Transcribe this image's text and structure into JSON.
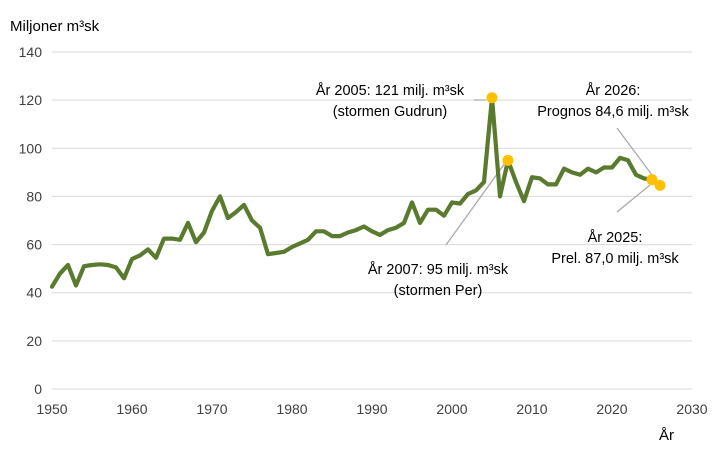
{
  "chart_data": {
    "type": "line",
    "ylabel": "Miljoner m³sk",
    "xlabel": "År",
    "xlim": [
      1950,
      2030
    ],
    "ylim": [
      0,
      140
    ],
    "x_ticks": [
      1950,
      1960,
      1970,
      1980,
      1990,
      2000,
      2010,
      2020,
      2030
    ],
    "y_ticks": [
      0,
      20,
      40,
      60,
      80,
      100,
      120,
      140
    ],
    "grid": "horizontal",
    "colors": {
      "line": "#5a7a2e",
      "marker": "#ffc000",
      "grid": "#d9d9d9",
      "leader": "#a6a6a6",
      "axis_text": "#404040"
    },
    "series": [
      {
        "x": [
          1950,
          1951,
          1952,
          1953,
          1954,
          1955,
          1956,
          1957,
          1958,
          1959,
          1960,
          1961,
          1962,
          1963,
          1964,
          1965,
          1966,
          1967,
          1968,
          1969,
          1970,
          1971,
          1972,
          1973,
          1974,
          1975,
          1976,
          1977,
          1978,
          1979,
          1980,
          1981,
          1982,
          1983,
          1984,
          1985,
          1986,
          1987,
          1988,
          1989,
          1990,
          1991,
          1992,
          1993,
          1994,
          1995,
          1996,
          1997,
          1998,
          1999,
          2000,
          2001,
          2002,
          2003,
          2004,
          2005,
          2006,
          2007,
          2008,
          2009,
          2010,
          2011,
          2012,
          2013,
          2014,
          2015,
          2016,
          2017,
          2018,
          2019,
          2020,
          2021,
          2022,
          2023,
          2024,
          2025,
          2026
        ],
        "values": [
          42.5,
          48,
          51.5,
          43,
          51,
          51.5,
          51.8,
          51.5,
          50.5,
          46,
          54,
          55.5,
          58,
          54.5,
          62.5,
          62.5,
          62,
          69,
          61,
          65,
          74,
          80,
          71,
          73.5,
          76.5,
          70,
          67,
          56,
          56.5,
          57,
          59,
          60.5,
          62,
          65.5,
          65.5,
          63.5,
          63.5,
          65,
          66,
          67.5,
          65.5,
          64,
          66,
          67,
          69,
          77.5,
          69,
          74.5,
          74.5,
          72,
          77.5,
          77,
          81,
          82.5,
          86,
          121,
          80,
          95,
          86,
          78,
          88,
          87.5,
          85,
          85,
          91.5,
          90,
          89,
          91.5,
          90,
          92,
          92,
          96,
          95,
          89,
          87.5,
          87.0,
          84.6
        ]
      }
    ],
    "highlighted_points": [
      {
        "x": 2005,
        "y": 121
      },
      {
        "x": 2007,
        "y": 95
      },
      {
        "x": 2025,
        "y": 87.0
      },
      {
        "x": 2026,
        "y": 84.6
      }
    ],
    "annotations": [
      {
        "target_x": 2005,
        "target_y": 121,
        "lines": [
          "År 2005: 121 milj. m³sk",
          "(stormen Gudrun)"
        ]
      },
      {
        "target_x": 2007,
        "target_y": 95,
        "lines": [
          "År 2007: 95 milj. m³sk",
          "(stormen Per)"
        ]
      },
      {
        "target_x": 2026,
        "target_y": 84.6,
        "lines": [
          "År 2026:",
          "Prognos 84,6 milj. m³sk"
        ]
      },
      {
        "target_x": 2025,
        "target_y": 87.0,
        "lines": [
          "År 2025:",
          "Prel. 87,0 milj. m³sk"
        ]
      }
    ]
  }
}
